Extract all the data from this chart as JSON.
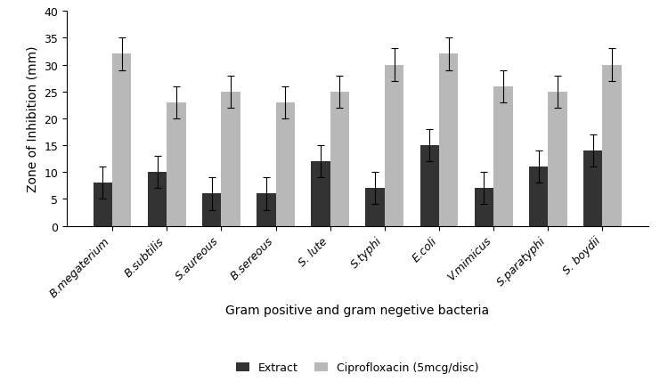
{
  "categories": [
    "B.megaterium",
    "B.subtilis",
    "S.aureous",
    "B.sereous",
    "S. lute",
    "S.typhi",
    "E.coli",
    "V.mimicus",
    "S.paratyphi",
    "S. boydii"
  ],
  "extract_values": [
    8,
    10,
    6,
    6,
    12,
    7,
    15,
    7,
    11,
    14
  ],
  "cipro_values": [
    32,
    23,
    25,
    23,
    25,
    30,
    32,
    26,
    25,
    30
  ],
  "extract_errors": [
    3,
    3,
    3,
    3,
    3,
    3,
    3,
    3,
    3,
    3
  ],
  "cipro_errors": [
    3,
    3,
    3,
    3,
    3,
    3,
    3,
    3,
    3,
    3
  ],
  "extract_color": "#333333",
  "cipro_color": "#b8b8b8",
  "xlabel": "Gram positive and gram negetive bacteria",
  "ylabel": "Zone of Inhibition (mm)",
  "ylim": [
    0,
    40
  ],
  "yticks": [
    0,
    5,
    10,
    15,
    20,
    25,
    30,
    35,
    40
  ],
  "legend_extract": "Extract",
  "legend_cipro": "Ciprofloxacin (5mcg/disc)",
  "bar_width": 0.35,
  "axis_fontsize": 10,
  "tick_fontsize": 9,
  "legend_fontsize": 9
}
